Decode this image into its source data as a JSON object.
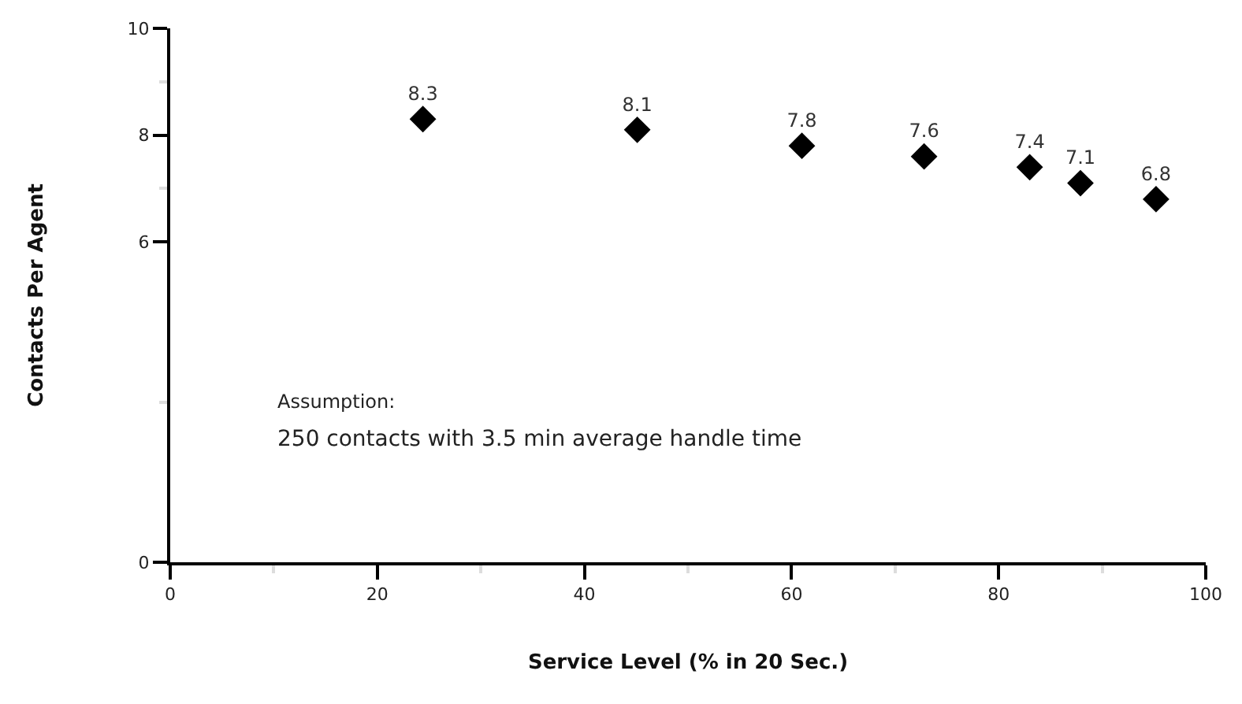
{
  "chart_data": {
    "type": "scatter",
    "xlabel": "Service Level (% in 20 Sec.)",
    "ylabel": "Contacts Per Agent",
    "x": [
      24.4,
      45.1,
      61.0,
      72.8,
      83.0,
      87.9,
      95.2
    ],
    "series": [
      {
        "color": "#000000",
        "values": [
          8.3,
          8.1,
          7.8,
          7.6,
          7.4,
          7.1,
          6.8
        ]
      }
    ],
    "data_labels": true,
    "marker": "diamond",
    "xlim": [
      0,
      100
    ],
    "xticks": [
      0,
      {
        "value": 10,
        "label": null
      },
      20,
      {
        "value": 30,
        "label": null
      },
      40,
      {
        "value": 50,
        "label": null
      },
      60,
      {
        "value": 70,
        "label": null
      },
      80,
      {
        "value": 90,
        "label": null
      },
      100
    ],
    "ylim": [
      0,
      10
    ],
    "yticks": [
      0,
      {
        "value": 3,
        "label": null
      },
      6,
      {
        "value": 7,
        "label": null
      },
      8,
      {
        "value": 9,
        "label": null
      },
      10
    ],
    "annotations": [
      "Assumption:",
      "250 contacts with 3.5 min average handle time"
    ]
  }
}
